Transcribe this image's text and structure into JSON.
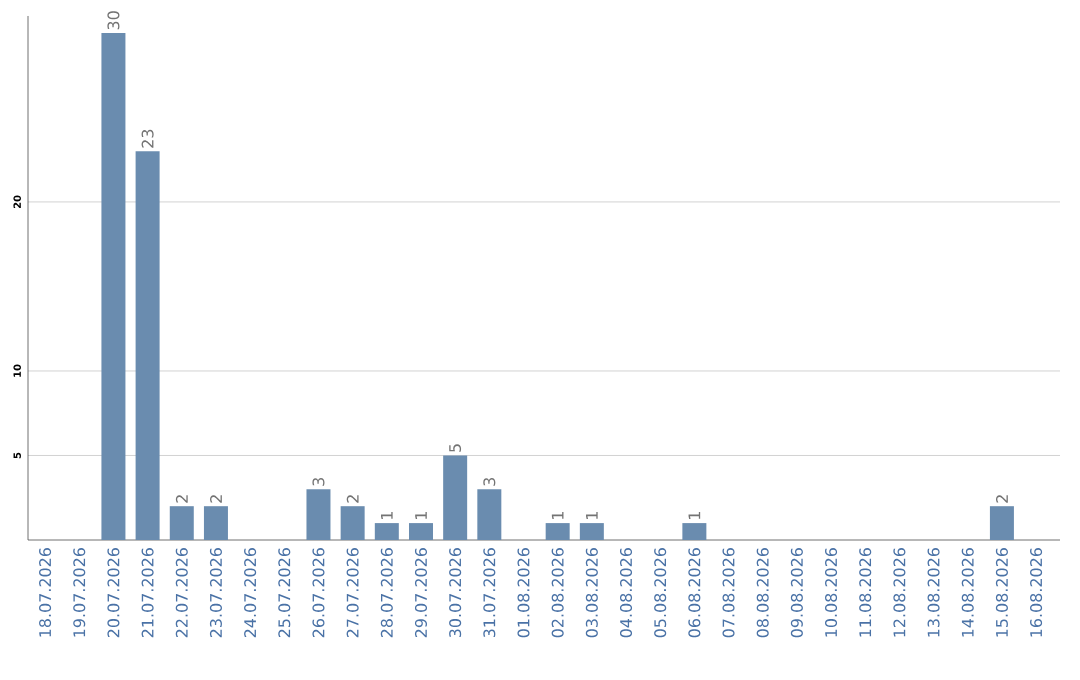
{
  "chart_data": {
    "type": "bar",
    "categories": [
      "18.07.2026",
      "19.07.2026",
      "20.07.2026",
      "21.07.2026",
      "22.07.2026",
      "23.07.2026",
      "24.07.2026",
      "25.07.2026",
      "26.07.2026",
      "27.07.2026",
      "28.07.2026",
      "29.07.2026",
      "30.07.2026",
      "31.07.2026",
      "01.08.2026",
      "02.08.2026",
      "03.08.2026",
      "04.08.2026",
      "05.08.2026",
      "06.08.2026",
      "07.08.2026",
      "08.08.2026",
      "09.08.2026",
      "10.08.2026",
      "11.08.2026",
      "12.08.2026",
      "13.08.2026",
      "14.08.2026",
      "15.08.2026",
      "16.08.2026"
    ],
    "values": [
      0,
      0,
      30,
      23,
      2,
      2,
      0,
      0,
      3,
      2,
      1,
      1,
      5,
      3,
      0,
      1,
      1,
      0,
      0,
      1,
      0,
      0,
      0,
      0,
      0,
      0,
      0,
      0,
      2,
      0
    ],
    "value_labels": [
      null,
      null,
      "30",
      "23",
      "2",
      "2",
      null,
      null,
      "3",
      "2",
      "1",
      "1",
      "5",
      "3",
      null,
      "1",
      "1",
      null,
      null,
      "1",
      null,
      null,
      null,
      null,
      null,
      null,
      null,
      null,
      "2",
      null
    ],
    "color": "#6a8caf",
    "ylim": [
      0,
      31
    ],
    "yticks": [
      5,
      10,
      20
    ],
    "grid": "y"
  }
}
